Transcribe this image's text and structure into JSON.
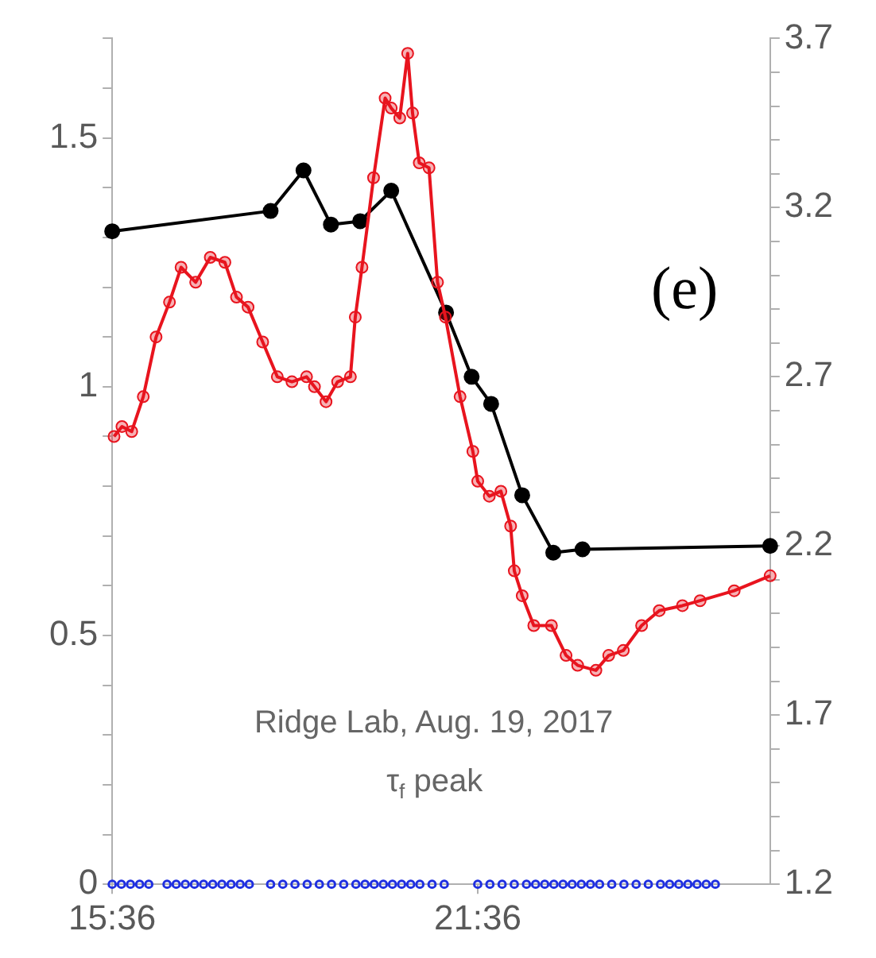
{
  "chart_data": {
    "type": "line",
    "xlim": [
      15.6,
      26.4
    ],
    "xticks": [
      {
        "value": 15.6,
        "label": "15:36"
      },
      {
        "value": 21.6,
        "label": "21:36"
      }
    ],
    "ylim": [
      0,
      1.7
    ],
    "yticks": [
      0,
      {
        "value": 0.1,
        "label": null
      },
      {
        "value": 0.2,
        "label": null
      },
      {
        "value": 0.3,
        "label": null
      },
      {
        "value": 0.4,
        "label": null
      },
      0.5,
      {
        "value": 0.6,
        "label": null
      },
      {
        "value": 0.7,
        "label": null
      },
      {
        "value": 0.8,
        "label": null
      },
      {
        "value": 0.9,
        "label": null
      },
      1,
      {
        "value": 1.1,
        "label": null
      },
      {
        "value": 1.2,
        "label": null
      },
      {
        "value": 1.3,
        "label": null
      },
      {
        "value": 1.4,
        "label": null
      },
      1.5,
      {
        "value": 1.6,
        "label": null
      },
      {
        "value": 1.7,
        "label": null
      }
    ],
    "y2lim": [
      1.2,
      3.7
    ],
    "y2ticks": [
      1.2,
      {
        "value": 1.3,
        "label": null
      },
      {
        "value": 1.4,
        "label": null
      },
      {
        "value": 1.5,
        "label": null
      },
      {
        "value": 1.6,
        "label": null
      },
      1.7,
      {
        "value": 1.8,
        "label": null
      },
      {
        "value": 1.9,
        "label": null
      },
      {
        "value": 2.0,
        "label": null
      },
      {
        "value": 2.1,
        "label": null
      },
      2.2,
      {
        "value": 2.3,
        "label": null
      },
      {
        "value": 2.4,
        "label": null
      },
      {
        "value": 2.5,
        "label": null
      },
      {
        "value": 2.6,
        "label": null
      },
      2.7,
      {
        "value": 2.8,
        "label": null
      },
      {
        "value": 2.9,
        "label": null
      },
      {
        "value": 3.0,
        "label": null
      },
      {
        "value": 3.1,
        "label": null
      },
      3.2,
      {
        "value": 3.3,
        "label": null
      },
      {
        "value": 3.4,
        "label": null
      },
      {
        "value": 3.5,
        "label": null
      },
      {
        "value": 3.6,
        "label": null
      },
      3.7
    ],
    "grid": false,
    "marker": "circle",
    "annotations": [
      "(e)",
      "Ridge Lab, Aug. 19, 2017",
      "τ$_{f}$ peak"
    ],
    "series": [
      {
        "type": "line",
        "color": "#e8141e",
        "x": [
          15.63,
          15.76,
          15.92,
          16.11,
          16.32,
          16.54,
          16.73,
          16.97,
          17.21,
          17.45,
          17.64,
          17.83,
          18.07,
          18.31,
          18.55,
          18.79,
          18.92,
          19.11,
          19.3,
          19.51,
          19.59,
          19.7,
          19.89,
          20.08,
          20.18,
          20.32,
          20.45,
          20.53,
          20.64,
          20.8,
          20.94,
          21.07,
          21.31,
          21.52,
          21.6,
          21.79,
          21.98,
          22.14,
          22.2,
          22.33,
          22.52,
          22.81,
          23.05,
          23.24,
          23.54,
          23.75,
          23.99,
          24.29,
          24.58,
          24.96,
          25.25,
          25.81,
          26.4
        ],
        "values": [
          0.9,
          0.92,
          0.91,
          0.98,
          1.1,
          1.17,
          1.24,
          1.21,
          1.26,
          1.25,
          1.18,
          1.16,
          1.09,
          1.02,
          1.01,
          1.02,
          1.0,
          0.97,
          1.01,
          1.02,
          1.14,
          1.24,
          1.42,
          1.58,
          1.56,
          1.54,
          1.67,
          1.55,
          1.45,
          1.44,
          1.21,
          1.14,
          0.98,
          0.87,
          0.81,
          0.78,
          0.79,
          0.72,
          0.63,
          0.58,
          0.52,
          0.52,
          0.46,
          0.44,
          0.43,
          0.46,
          0.47,
          0.52,
          0.55,
          0.56,
          0.57,
          0.59,
          0.62
        ]
      },
      {
        "type": "line",
        "color": "#000000",
        "axis": "y2",
        "x": [
          15.6,
          18.2,
          18.74,
          19.19,
          19.67,
          20.18,
          21.08,
          21.5,
          21.82,
          22.33,
          22.84,
          23.32,
          26.4
        ],
        "values": [
          3.13,
          3.19,
          3.31,
          3.15,
          3.16,
          3.25,
          2.89,
          2.7,
          2.62,
          2.35,
          2.18,
          2.19,
          2.2
        ]
      },
      {
        "type": "scatter",
        "color": "#1f2fe0",
        "x": [
          15.6,
          15.75,
          15.9,
          16.05,
          16.2,
          16.5,
          16.65,
          16.8,
          16.95,
          17.1,
          17.25,
          17.4,
          17.55,
          17.7,
          17.85,
          18.2,
          18.4,
          18.6,
          18.8,
          19.0,
          19.2,
          19.4,
          19.6,
          19.75,
          19.9,
          20.05,
          20.2,
          20.35,
          20.5,
          20.65,
          20.85,
          21.05,
          21.6,
          21.8,
          22.0,
          22.2,
          22.4,
          22.55,
          22.7,
          22.85,
          23.0,
          23.15,
          23.3,
          23.45,
          23.6,
          23.8,
          24.0,
          24.2,
          24.4,
          24.6,
          24.75,
          24.9,
          25.05,
          25.2,
          25.35,
          25.5
        ],
        "values": [
          0,
          0,
          0,
          0,
          0,
          0,
          0,
          0,
          0,
          0,
          0,
          0,
          0,
          0,
          0,
          0,
          0,
          0,
          0,
          0,
          0,
          0,
          0,
          0,
          0,
          0,
          0,
          0,
          0,
          0,
          0,
          0,
          0,
          0,
          0,
          0,
          0,
          0,
          0,
          0,
          0,
          0,
          0,
          0,
          0,
          0,
          0,
          0,
          0,
          0,
          0,
          0,
          0,
          0,
          0,
          0
        ]
      }
    ]
  }
}
